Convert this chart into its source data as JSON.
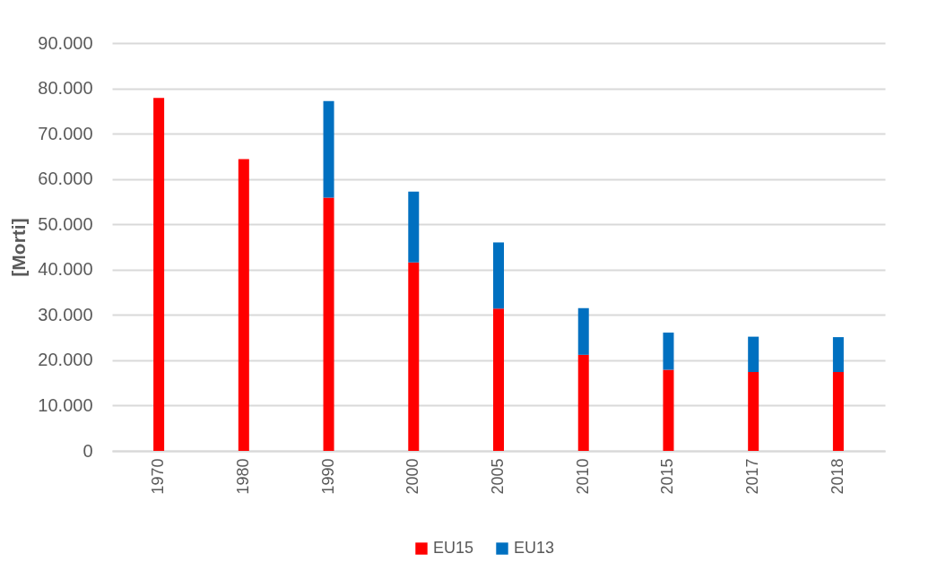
{
  "chart_data": {
    "type": "bar",
    "stacked": true,
    "ylabel": "[Morti]",
    "categories": [
      "1970",
      "1980",
      "1990",
      "2000",
      "2005",
      "2010",
      "2015",
      "2017",
      "2018"
    ],
    "series": [
      {
        "name": "EU15",
        "color": "#ff0000",
        "values": [
          77900,
          64400,
          55900,
          41600,
          31400,
          21200,
          17900,
          17400,
          17400
        ]
      },
      {
        "name": "EU13",
        "color": "#0070c0",
        "values": [
          null,
          null,
          21300,
          15600,
          14600,
          10300,
          8200,
          7800,
          7700
        ]
      }
    ],
    "ylim": [
      0,
      90000
    ],
    "yticks": [
      0,
      {
        "value": 10000,
        "label": "10.000"
      },
      {
        "value": 20000,
        "label": "20.000"
      },
      {
        "value": 30000,
        "label": "30.000"
      },
      {
        "value": 40000,
        "label": "40.000"
      },
      {
        "value": 50000,
        "label": "50.000"
      },
      {
        "value": 60000,
        "label": "60.000"
      },
      {
        "value": 70000,
        "label": "70.000"
      },
      {
        "value": 80000,
        "label": "80.000"
      },
      {
        "value": 90000,
        "label": "90.000"
      }
    ],
    "grid": "y",
    "legend": "bottom"
  }
}
